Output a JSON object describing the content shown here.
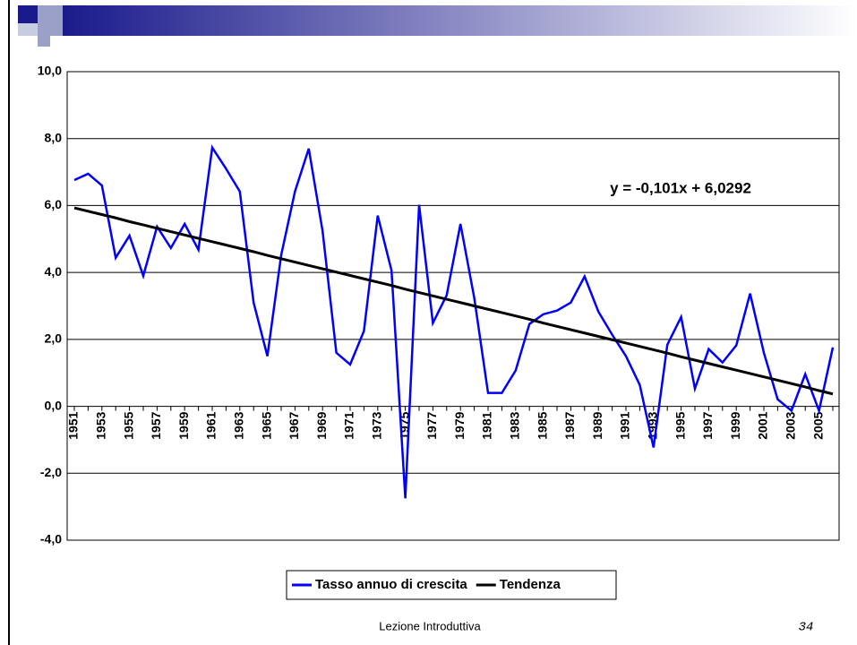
{
  "chart_data": {
    "type": "line",
    "categories": [
      "1951",
      null,
      "1953",
      null,
      "1955",
      null,
      "1957",
      null,
      "1959",
      null,
      "1961",
      null,
      "1963",
      null,
      "1965",
      null,
      "1967",
      null,
      "1969",
      null,
      "1971",
      null,
      "1973",
      null,
      "1975",
      null,
      "1977",
      null,
      "1979",
      null,
      "1981",
      null,
      "1983",
      null,
      "1985",
      null,
      "1987",
      null,
      "1989",
      null,
      "1991",
      null,
      "1993",
      null,
      "1995",
      null,
      "1997",
      null,
      "1999",
      null,
      "2001",
      null,
      "2003",
      null,
      "2005",
      null
    ],
    "series": [
      {
        "name": "Tasso annuo di crescita",
        "color": "#0000ff",
        "values": [
          6.76,
          6.95,
          6.6,
          4.44,
          5.1,
          3.9,
          5.37,
          4.73,
          5.45,
          4.68,
          7.73,
          7.1,
          6.42,
          3.1,
          1.5,
          4.52,
          6.42,
          7.7,
          5.24,
          1.6,
          1.25,
          2.25,
          5.7,
          4.06,
          -2.75,
          6.02,
          2.49,
          3.32,
          5.45,
          3.24,
          0.4,
          0.4,
          1.07,
          2.46,
          2.75,
          2.86,
          3.1,
          3.88,
          2.83,
          2.14,
          1.5,
          0.64,
          -1.23,
          1.84,
          2.67,
          0.53,
          1.71,
          1.31,
          1.82,
          3.37,
          1.6,
          0.21,
          -0.13,
          0.96,
          -0.13,
          1.76
        ]
      },
      {
        "name": "Tendenza",
        "color": "#000000",
        "values": [
          5.93,
          5.83,
          5.73,
          5.63,
          5.52,
          5.42,
          5.32,
          5.22,
          5.12,
          5.02,
          4.92,
          4.82,
          4.72,
          4.62,
          4.51,
          4.41,
          4.31,
          4.21,
          4.11,
          4.01,
          3.91,
          3.81,
          3.71,
          3.61,
          3.5,
          3.4,
          3.3,
          3.2,
          3.1,
          3.0,
          2.9,
          2.8,
          2.7,
          2.6,
          2.49,
          2.39,
          2.29,
          2.19,
          2.09,
          1.99,
          1.89,
          1.79,
          1.69,
          1.59,
          1.48,
          1.38,
          1.28,
          1.18,
          1.08,
          0.98,
          0.88,
          0.78,
          0.68,
          0.58,
          0.47,
          0.37
        ]
      }
    ],
    "annotation": "y = -0,101x + 6,0292",
    "ylim": [
      -4,
      10
    ],
    "yticks": [
      {
        "value": -4,
        "label": "-4,0"
      },
      {
        "value": -2,
        "label": "-2,0"
      },
      {
        "value": 0,
        "label": "0,0"
      },
      {
        "value": 2,
        "label": "2,0"
      },
      {
        "value": 4,
        "label": "4,0"
      },
      {
        "value": 6,
        "label": "6,0"
      },
      {
        "value": 8,
        "label": "8,0"
      },
      {
        "value": 10,
        "label": "10,0"
      }
    ],
    "grid": true,
    "legend": "bottom"
  },
  "footer": {
    "text": "Lezione Introduttiva",
    "page": "34"
  }
}
